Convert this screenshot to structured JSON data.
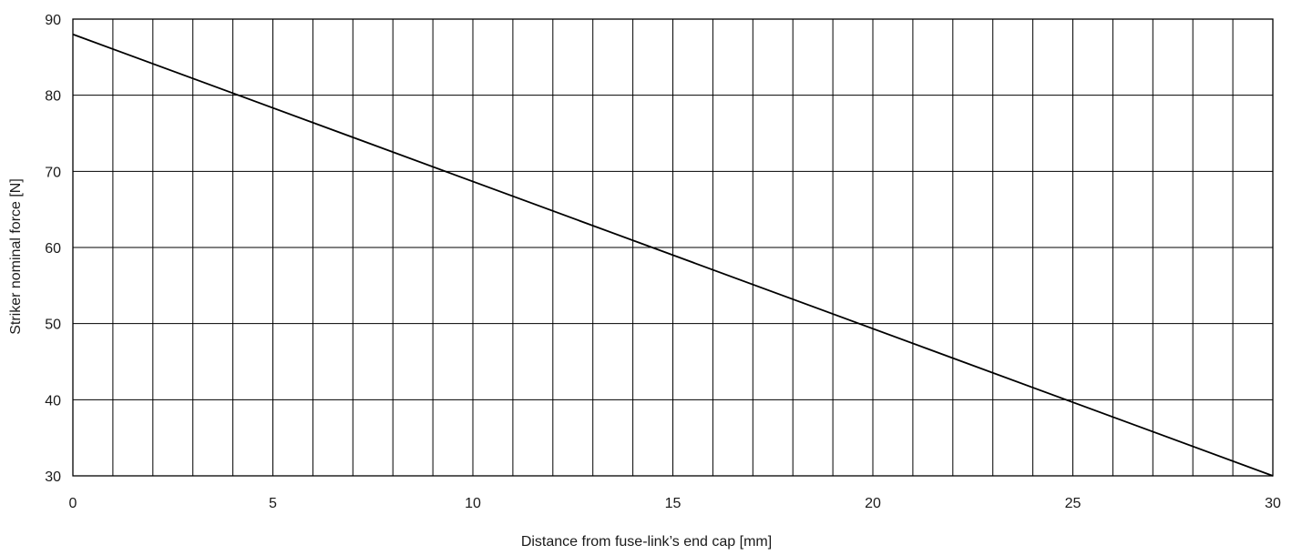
{
  "chart_data": {
    "type": "line",
    "title": "",
    "xlabel": "Distance from fuse-link’s end cap [mm]",
    "ylabel": "Striker nominal force [N]",
    "xlim": [
      0,
      30
    ],
    "ylim": [
      30,
      90
    ],
    "x_ticks": [
      "0",
      "5",
      "10",
      "15",
      "20",
      "25",
      "30"
    ],
    "y_ticks": [
      "30",
      "40",
      "50",
      "60",
      "70",
      "80",
      "90"
    ],
    "x_grid_step": 1,
    "y_grid_step": 10,
    "grid": true,
    "series": [
      {
        "x": [
          0,
          30
        ],
        "y": [
          88,
          30
        ]
      }
    ],
    "colors": {
      "line": "#000000",
      "grid": "#000000",
      "frame": "#000000"
    }
  }
}
